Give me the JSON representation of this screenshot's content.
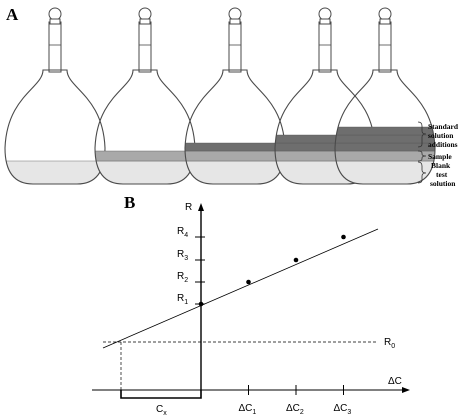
{
  "panel_a": {
    "letter": "A",
    "flasks": [
      {
        "label": "flask-1",
        "layers": [
          "blank"
        ]
      },
      {
        "label": "flask-2",
        "layers": [
          "blank",
          "sample"
        ]
      },
      {
        "label": "flask-3",
        "layers": [
          "blank",
          "sample",
          "standard"
        ]
      },
      {
        "label": "flask-4",
        "layers": [
          "blank",
          "sample",
          "standard",
          "standard"
        ]
      },
      {
        "label": "flask-5",
        "layers": [
          "blank",
          "sample",
          "standard",
          "standard",
          "standard"
        ]
      }
    ],
    "legend": {
      "standard": [
        "Standard",
        "solution",
        "additions"
      ],
      "sample": [
        "Sample"
      ],
      "blank": [
        "Blank",
        "test",
        "solution"
      ]
    },
    "colors": {
      "blank": "#e6e6e6",
      "sample": "#a9a9a9",
      "standard": "#6e6e6e",
      "outline": "#4a4a4a"
    }
  },
  "panel_b": {
    "letter": "B",
    "y_axis_label": "R",
    "x_axis_label": "ΔC",
    "response_labels": [
      {
        "base": "R",
        "sub": "4"
      },
      {
        "base": "R",
        "sub": "3"
      },
      {
        "base": "R",
        "sub": "2"
      },
      {
        "base": "R",
        "sub": "1"
      }
    ],
    "r0_label": {
      "base": "R",
      "sub": "0"
    },
    "x_tick_labels": [
      {
        "base": "ΔC",
        "sub": "1"
      },
      {
        "base": "ΔC",
        "sub": "2"
      },
      {
        "base": "ΔC",
        "sub": "3"
      }
    ],
    "cx_label": {
      "base": "C",
      "sub": "x"
    }
  },
  "chart_data": {
    "type": "scatter",
    "points": [
      {
        "dC": 0,
        "R": 1
      },
      {
        "dC": 1,
        "R": 2
      },
      {
        "dC": 2,
        "R": 3
      },
      {
        "dC": 3,
        "R": 4
      }
    ],
    "fit_line": {
      "intercept": 1,
      "slope": 1
    },
    "blank_response": 0
  }
}
